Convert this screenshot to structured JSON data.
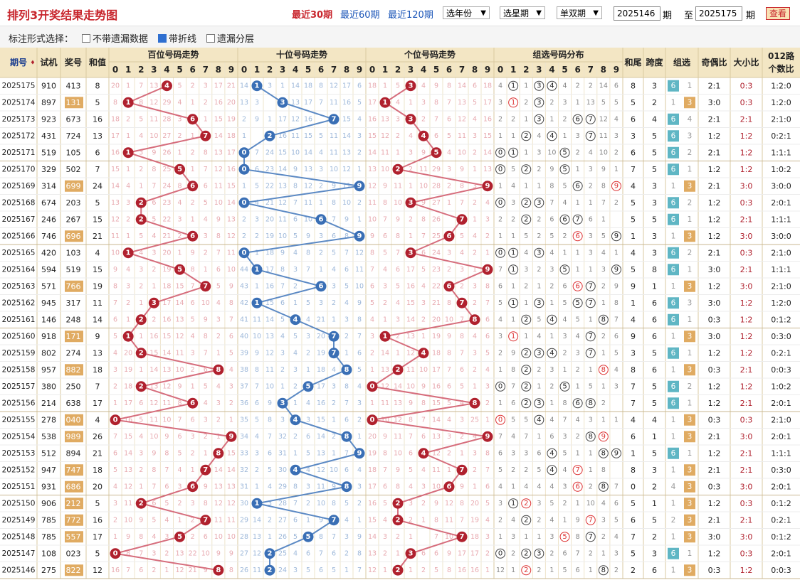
{
  "page_title": "排列3开奖结果走势图",
  "periods_links": [
    "最近30期",
    "最近60期",
    "最近120期"
  ],
  "selects": [
    "选年份",
    "选星期",
    "单双期"
  ],
  "range": {
    "from": "2025146",
    "from_suffix": "期",
    "to_prefix": "至",
    "to": "2025175",
    "to_suffix": "期"
  },
  "search_button": "查看",
  "options": {
    "label": "标注形式选择：",
    "items": [
      {
        "text": "不带遗漏数据",
        "checked": false
      },
      {
        "text": "带折线",
        "checked": true
      },
      {
        "text": "遗漏分层",
        "checked": false
      }
    ]
  },
  "headers": {
    "issue": "期号",
    "trial": "试机",
    "prize": "奖号",
    "sum": "和值",
    "hundreds": "百位号码走势",
    "tens": "十位号码走势",
    "units": "个位号码走势",
    "group": "组选号码分布",
    "tail": "和尾",
    "span": "跨度",
    "group_type": "组选",
    "odd_even": "奇偶比",
    "big_small": "大小比",
    "route_line1": "012路",
    "route_line2": "个数比",
    "digits": [
      "0",
      "1",
      "2",
      "3",
      "4",
      "5",
      "6",
      "7",
      "8",
      "9"
    ]
  },
  "colors": {
    "red": "#b0212e",
    "blue": "#3a6fb5",
    "red_line": "#d66d7c",
    "blue_line": "#5b89c4",
    "faint_red": "#e8aab0",
    "faint_blue": "#9fb9da",
    "header_bg": "#f3e6c4",
    "gold": "#e0ab62",
    "teal": "#5fb6c4"
  },
  "rows": [
    {
      "issue": "2025175",
      "trial": "910",
      "prize": "413",
      "sum": "8",
      "prize_hl": false,
      "tail": "8",
      "span": "3",
      "g6": "6",
      "g3": "1",
      "g6hl": true,
      "g3hl": false,
      "oe": "2:1",
      "bs": "0:3",
      "route": "1:2:0"
    },
    {
      "issue": "2025174",
      "trial": "897",
      "prize": "131",
      "sum": "5",
      "prize_hl": true,
      "tail": "5",
      "span": "2",
      "g6": "1",
      "g3": "3",
      "g6hl": false,
      "g3hl": true,
      "oe": "3:0",
      "bs": "0:3",
      "route": "1:2:0"
    },
    {
      "issue": "2025173",
      "trial": "923",
      "prize": "673",
      "sum": "16",
      "prize_hl": false,
      "tail": "6",
      "span": "4",
      "g6": "6",
      "g3": "4",
      "g6hl": true,
      "g3hl": false,
      "oe": "2:1",
      "bs": "2:1",
      "route": "2:1:0"
    },
    {
      "issue": "2025172",
      "trial": "431",
      "prize": "724",
      "sum": "13",
      "prize_hl": false,
      "tail": "3",
      "span": "5",
      "g6": "6",
      "g3": "3",
      "g6hl": true,
      "g3hl": false,
      "oe": "1:2",
      "bs": "1:2",
      "route": "0:2:1"
    },
    {
      "issue": "2025171",
      "trial": "519",
      "prize": "105",
      "sum": "6",
      "prize_hl": false,
      "tail": "6",
      "span": "5",
      "g6": "6",
      "g3": "2",
      "g6hl": true,
      "g3hl": false,
      "oe": "2:1",
      "bs": "1:2",
      "route": "1:1:1"
    },
    {
      "issue": "2025170",
      "trial": "329",
      "prize": "502",
      "sum": "7",
      "prize_hl": false,
      "tail": "7",
      "span": "5",
      "g6": "6",
      "g3": "1",
      "g6hl": true,
      "g3hl": false,
      "oe": "1:2",
      "bs": "1:2",
      "route": "1:0:2"
    },
    {
      "issue": "2025169",
      "trial": "314",
      "prize": "699",
      "sum": "24",
      "prize_hl": true,
      "tail": "4",
      "span": "3",
      "g6": "1",
      "g3": "3",
      "g6hl": false,
      "g3hl": true,
      "oe": "2:1",
      "bs": "3:0",
      "route": "3:0:0"
    },
    {
      "issue": "2025168",
      "trial": "674",
      "prize": "203",
      "sum": "5",
      "prize_hl": false,
      "tail": "5",
      "span": "3",
      "g6": "6",
      "g3": "2",
      "g6hl": true,
      "g3hl": false,
      "oe": "1:2",
      "bs": "0:3",
      "route": "2:0:1"
    },
    {
      "issue": "2025167",
      "trial": "246",
      "prize": "267",
      "sum": "15",
      "prize_hl": false,
      "tail": "5",
      "span": "5",
      "g6": "6",
      "g3": "1",
      "g6hl": true,
      "g3hl": false,
      "oe": "1:2",
      "bs": "2:1",
      "route": "1:1:1"
    },
    {
      "issue": "2025166",
      "trial": "746",
      "prize": "696",
      "sum": "21",
      "prize_hl": true,
      "tail": "1",
      "span": "3",
      "g6": "1",
      "g3": "3",
      "g6hl": false,
      "g3hl": true,
      "oe": "1:2",
      "bs": "3:0",
      "route": "3:0:0"
    },
    {
      "issue": "2025165",
      "trial": "420",
      "prize": "103",
      "sum": "4",
      "prize_hl": false,
      "tail": "4",
      "span": "3",
      "g6": "6",
      "g3": "2",
      "g6hl": true,
      "g3hl": false,
      "oe": "2:1",
      "bs": "0:3",
      "route": "2:1:0"
    },
    {
      "issue": "2025164",
      "trial": "594",
      "prize": "519",
      "sum": "15",
      "prize_hl": false,
      "tail": "5",
      "span": "8",
      "g6": "6",
      "g3": "1",
      "g6hl": true,
      "g3hl": false,
      "oe": "3:0",
      "bs": "2:1",
      "route": "1:1:1"
    },
    {
      "issue": "2025163",
      "trial": "571",
      "prize": "766",
      "sum": "19",
      "prize_hl": true,
      "tail": "9",
      "span": "1",
      "g6": "1",
      "g3": "3",
      "g6hl": false,
      "g3hl": true,
      "oe": "1:2",
      "bs": "3:0",
      "route": "2:1:0"
    },
    {
      "issue": "2025162",
      "trial": "945",
      "prize": "317",
      "sum": "11",
      "prize_hl": false,
      "tail": "1",
      "span": "6",
      "g6": "6",
      "g3": "3",
      "g6hl": true,
      "g3hl": false,
      "oe": "3:0",
      "bs": "1:2",
      "route": "1:2:0"
    },
    {
      "issue": "2025161",
      "trial": "146",
      "prize": "248",
      "sum": "14",
      "prize_hl": false,
      "tail": "4",
      "span": "6",
      "g6": "6",
      "g3": "1",
      "g6hl": true,
      "g3hl": false,
      "oe": "0:3",
      "bs": "1:2",
      "route": "0:1:2"
    },
    {
      "issue": "2025160",
      "trial": "918",
      "prize": "171",
      "sum": "9",
      "prize_hl": true,
      "tail": "9",
      "span": "6",
      "g6": "1",
      "g3": "3",
      "g6hl": false,
      "g3hl": true,
      "oe": "3:0",
      "bs": "1:2",
      "route": "0:3:0"
    },
    {
      "issue": "2025159",
      "trial": "802",
      "prize": "274",
      "sum": "13",
      "prize_hl": false,
      "tail": "3",
      "span": "5",
      "g6": "6",
      "g3": "1",
      "g6hl": true,
      "g3hl": false,
      "oe": "1:2",
      "bs": "1:2",
      "route": "0:2:1"
    },
    {
      "issue": "2025158",
      "trial": "957",
      "prize": "882",
      "sum": "18",
      "prize_hl": true,
      "tail": "8",
      "span": "6",
      "g6": "1",
      "g3": "3",
      "g6hl": false,
      "g3hl": true,
      "oe": "0:3",
      "bs": "2:1",
      "route": "0:0:3"
    },
    {
      "issue": "2025157",
      "trial": "380",
      "prize": "250",
      "sum": "7",
      "prize_hl": false,
      "tail": "7",
      "span": "5",
      "g6": "6",
      "g3": "2",
      "g6hl": true,
      "g3hl": false,
      "oe": "1:2",
      "bs": "1:2",
      "route": "1:0:2"
    },
    {
      "issue": "2025156",
      "trial": "214",
      "prize": "638",
      "sum": "17",
      "prize_hl": false,
      "tail": "7",
      "span": "5",
      "g6": "6",
      "g3": "1",
      "g6hl": true,
      "g3hl": false,
      "oe": "1:2",
      "bs": "2:1",
      "route": "2:0:1"
    },
    {
      "issue": "2025155",
      "trial": "278",
      "prize": "040",
      "sum": "4",
      "prize_hl": true,
      "tail": "4",
      "span": "4",
      "g6": "1",
      "g3": "3",
      "g6hl": false,
      "g3hl": true,
      "oe": "0:3",
      "bs": "0:3",
      "route": "2:1:0"
    },
    {
      "issue": "2025154",
      "trial": "538",
      "prize": "989",
      "sum": "26",
      "prize_hl": true,
      "tail": "6",
      "span": "1",
      "g6": "1",
      "g3": "3",
      "g6hl": false,
      "g3hl": true,
      "oe": "2:1",
      "bs": "3:0",
      "route": "2:0:1"
    },
    {
      "issue": "2025153",
      "trial": "512",
      "prize": "894",
      "sum": "21",
      "prize_hl": false,
      "tail": "1",
      "span": "5",
      "g6": "6",
      "g3": "1",
      "g6hl": true,
      "g3hl": false,
      "oe": "1:2",
      "bs": "2:1",
      "route": "1:1:1"
    },
    {
      "issue": "2025152",
      "trial": "947",
      "prize": "747",
      "sum": "18",
      "prize_hl": true,
      "tail": "8",
      "span": "3",
      "g6": "1",
      "g3": "3",
      "g6hl": false,
      "g3hl": true,
      "oe": "2:1",
      "bs": "2:1",
      "route": "0:3:0"
    },
    {
      "issue": "2025151",
      "trial": "931",
      "prize": "686",
      "sum": "20",
      "prize_hl": true,
      "tail": "0",
      "span": "2",
      "g6": "4",
      "g3": "3",
      "g6hl": false,
      "g3hl": true,
      "oe": "0:3",
      "bs": "3:0",
      "route": "2:0:1"
    },
    {
      "issue": "2025150",
      "trial": "906",
      "prize": "212",
      "sum": "5",
      "prize_hl": true,
      "tail": "5",
      "span": "1",
      "g6": "1",
      "g3": "3",
      "g6hl": false,
      "g3hl": true,
      "oe": "1:2",
      "bs": "0:3",
      "route": "0:1:2"
    },
    {
      "issue": "2025149",
      "trial": "785",
      "prize": "772",
      "sum": "16",
      "prize_hl": true,
      "tail": "6",
      "span": "5",
      "g6": "2",
      "g3": "3",
      "g6hl": false,
      "g3hl": true,
      "oe": "2:1",
      "bs": "2:1",
      "route": "0:2:1"
    },
    {
      "issue": "2025148",
      "trial": "785",
      "prize": "557",
      "sum": "17",
      "prize_hl": true,
      "tail": "7",
      "span": "2",
      "g6": "1",
      "g3": "3",
      "g6hl": false,
      "g3hl": true,
      "oe": "3:0",
      "bs": "3:0",
      "route": "0:1:2"
    },
    {
      "issue": "2025147",
      "trial": "108",
      "prize": "023",
      "sum": "5",
      "prize_hl": false,
      "tail": "5",
      "span": "3",
      "g6": "6",
      "g3": "1",
      "g6hl": true,
      "g3hl": false,
      "oe": "1:2",
      "bs": "0:3",
      "route": "2:0:1"
    },
    {
      "issue": "2025146",
      "trial": "275",
      "prize": "822",
      "sum": "12",
      "prize_hl": true,
      "tail": "2",
      "span": "6",
      "g6": "1",
      "g3": "3",
      "g6hl": false,
      "g3hl": true,
      "oe": "0:3",
      "bs": "1:2",
      "route": "0:0:3"
    }
  ],
  "hundreds_miss": [
    "20 1 7 13 _ 5 2 3 17 21",
    "8 _ 8 12 29 4 1 2 16 20",
    "18 2 5 11 28 3 _ 1 15 19",
    "17 1 4 10 27 2 1 _ 14 18",
    "16 _ 3 9 26 1 2 8 13 17",
    "15 1 2 8 25 _ 1 7 12 16",
    "14 4 1 7 24 8 _ 6 11 15",
    "13 3 _ 6 23 4 2 5 10 14",
    "12 2 _ 5 22 3 1 4 9 13",
    "11 1 5 4 21 2 _ 3 8 12",
    "10 _ 4 3 20 1 9 2 7 11",
    "9 4 3 2 19 _ 8 1 6 10",
    "8 3 2 1 18 15 7 _ 5 9",
    "7 2 1 _ 17 14 6 10 4 8",
    "6 1 _ 2 16 13 5 9 3 7",
    "5 _ 1 16 15 12 4 8 2 6",
    "4 20 _ 15 14 11 3 7 1 5",
    "3 19 1 14 13 10 2 6 _ 4",
    "2 18 _ 13 12 9 1 5 4 3",
    "1 17 6 12 11 8 _ 4 3 2",
    "_ 16 5 11 10 7 6 3 2 1",
    "7 15 4 10 9 6 3 2 1 _",
    "6 14 3 9 8 5 2 1 _ 15",
    "5 13 2 8 7 4 1 _ 14 14",
    "4 12 1 7 6 3 _ 9 13 13",
    "3 11 _ 6 5 2 3 8 12 12",
    "2 10 9 5 4 1 2 _ 11 11",
    "1 9 8 4 3 _ 2 6 10 10",
    "_ 8 7 3 2 13 22 10 9 9",
    "16 7 6 2 1 12 21 9 _ 8"
  ],
  "tens_miss": [
    "14 _ 3 1 14 18 8 12 17 6",
    "13 3 _ 10 13 17 7 11 16 5",
    "2 9 1 17 12 16 _ 8 15 4",
    "1 _ 2 16 11 15 5 11 14 3",
    "_ 7 24 15 10 14 4 11 13 2",
    "_ 6 23 14 9 13 3 10 12 1",
    "1 5 22 13 8 12 2 9 11 _",
    "_ 4 21 12 7 11 1 8 10 2",
    "2 3 20 11 6 10 _ 7 9 1",
    "2 2 19 10 5 9 3 6 8 _",
    "_ 1 18 9 4 8 2 5 7 12",
    "44 _ 17 8 3 7 1 4 6 11",
    "43 1 16 7 2 _ 4 3 5 10",
    "42 _ 15 6 1 5 3 2 4 9",
    "41 11 14 5 _ 4 21 1 3 8",
    "40 10 13 4 5 3 20 _ 2 7",
    "39 9 12 3 4 2 19 _ 1 6",
    "38 8 11 2 3 1 18 4 _ 5",
    "37 7 10 1 2 _ 17 3 8 4",
    "36 6 9 _ 1 4 16 2 7 3",
    "35 5 8 3 _ 3 15 1 6 2",
    "34 4 7 32 2 6 14 2 _ 1",
    "33 3 6 31 1 5 13 1 7 _",
    "32 2 5 30 _ 4 12 10 6 4",
    "31 1 4 29 8 3 11 9 _ 3",
    "30 _ 3 28 7 2 10 8 5 2",
    "29 14 2 27 6 1 9 _ 4 1",
    "28 13 1 26 5 _ 8 7 3 9",
    "27 12 _ 25 4 6 7 6 2 8",
    "26 11 _ 24 3 5 6 5 1 7"
  ],
  "units_miss": [
    "18 1 5 _ 4 9 8 14 6 18",
    "17 _ 4 1 3 8 7 13 5 17",
    "16 13 3 _ 2 7 6 12 4 16",
    "15 12 2 4 _ 6 5 11 3 15",
    "14 11 1 3 9 _ 4 10 2 14",
    "13 10 _ 2 11 29 3 9 1 13",
    "12 9 11 1 10 28 2 8 3 _",
    "11 8 10 _ 9 27 1 7 2 4",
    "10 7 9 2 8 26 _ 6 1 3",
    "9 6 8 1 7 25 _ 5 4 2",
    "8 5 7 _ 6 24 3 4 2 1",
    "7 4 6 17 5 23 2 3 1 _",
    "6 3 5 16 4 22 _ 2 3 8",
    "5 2 4 15 3 21 8 _ 2 7",
    "4 1 3 14 2 20 10 7 _ 6",
    "3 _ 2 13 1 19 9 8 4 6",
    "2 14 1 12 _ 18 8 7 3 5",
    "1 13 _ 11 10 17 7 6 2 4",
    "_ 12 14 10 9 16 6 5 1 3",
    "1 11 13 9 8 15 5 4 _ 2",
    "_ 10 12 8 7 14 4 3 25 1",
    "20 9 11 7 6 13 3 2 4 _",
    "19 8 10 6 _ 12 2 1 3 8",
    "18 7 9 5 4 11 1 _ 2 7",
    "17 6 8 4 3 10 _ 9 1 6",
    "16 5 _ 3 2 9 12 8 20 5",
    "15 4 _ 2 1 8 11 7 19 4",
    "14 3 2 1 _ 7 10 _ 18 3",
    "13 2 1 _ 6 6 9 17 17 2",
    "12 1 _ 1 2 5 8 16 16 1"
  ],
  "group_dist": [
    "4 c1 1 c3 c4 4 2 2 14 6",
    "3 c1r 2 c3 2 3 1 13 5 5",
    "2 2 1 c3 1 2 c6 c7 12 4",
    "1 1 c2 4 c4 1 3 c7 11 3",
    "c0 c1 1 3 10 c5 2 4 10 2",
    "c0 5 c2 2 9 c5 1 3 9 1",
    "1 4 1 1 8 5 c6 2 8 c9r",
    "c0 3 c2 c3 7 4 1 1 7 2",
    "2 2 c2 2 6 c6 c7 6 1",
    "1 1 5 2 5 2 c6r 3 5 c9",
    "c0 c1 4 c3 4 1 1 3 4 1",
    "7 c1 3 2 3 c5 1 1 3 c9",
    "6 1 2 1 2 6 c6r c7 2 9",
    "5 c1 1 c3 1 5 c5 c7 1 8",
    "4 1 c2 5 c4 4 5 1 c8 7",
    "3 c1r 1 4 1 3 4 c7 2 6",
    "2 9 c2 c3 c4 2 3 c7 1 5",
    "1 8 c2 2 3 1 2 1 c8r 4",
    "c0 7 c2 1 2 c5 1 5 1 3",
    "1 6 c2 c3 1 8 c6 c8 2",
    "c0r 5 5 c4 4 7 4 3 1 1",
    "7 4 7 1 6 3 2 c8 c9r",
    "6 3 3 6 c4 5 1 1 c8 c9",
    "5 2 2 5 c4 4 c7r 1 8",
    "4 1 4 4 4 3 c6r 2 c8 7",
    "3 c1 c2r 3 5 2 1 10 4 6",
    "2 4 c2 2 4 1 9 c7r 3 5",
    "1 3 1 1 3 c5r 8 c7 2 4",
    "c0 2 c2 c3 2 6 7 2 1 3",
    "12 1 c2r 2 1 5 6 1 c8 2"
  ]
}
